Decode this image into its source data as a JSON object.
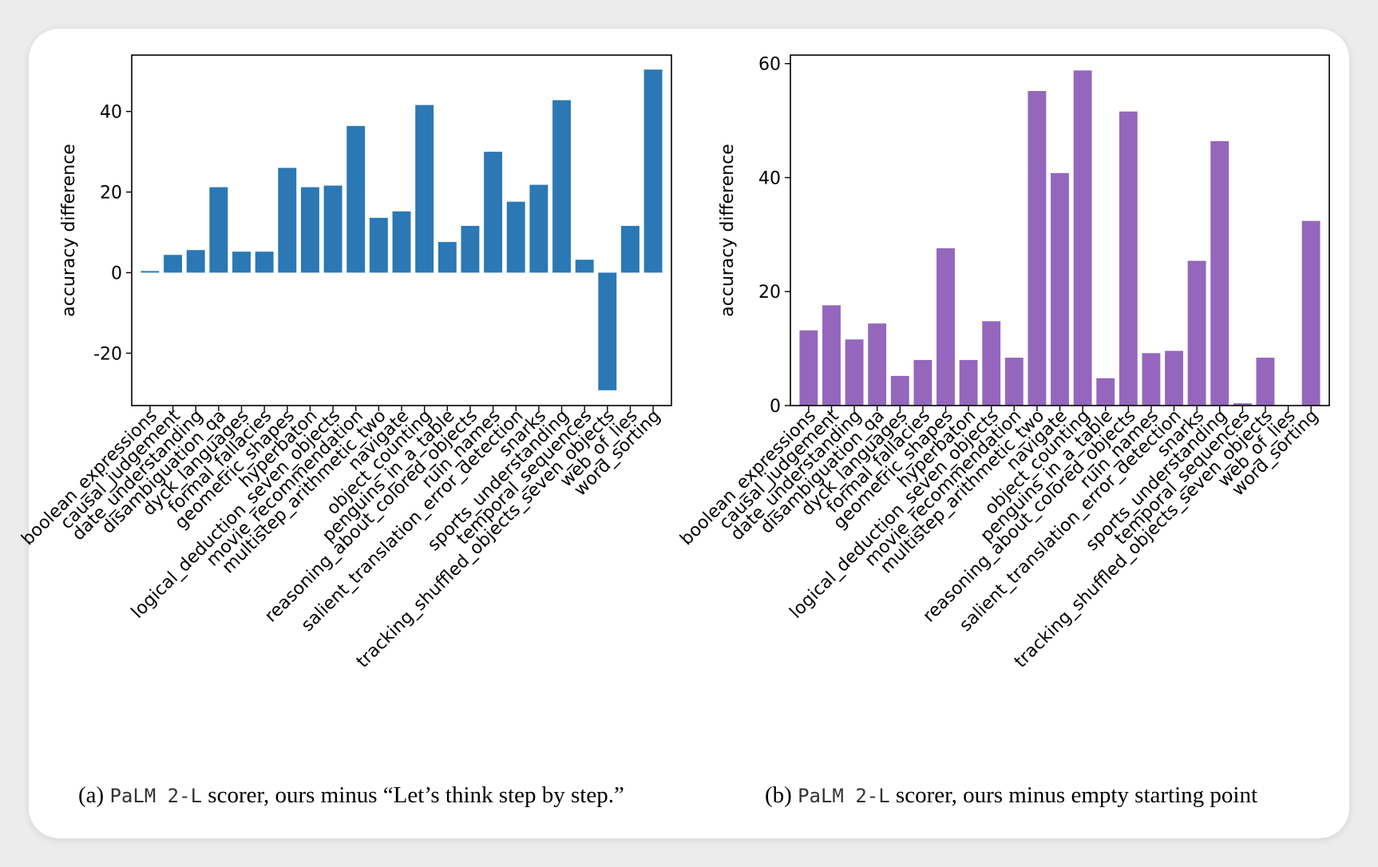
{
  "colors": {
    "panel_a": "#2b78b5",
    "panel_b": "#9467bd"
  },
  "chart_data": [
    {
      "type": "bar",
      "ylabel": "accuracy difference",
      "ylim": [
        -33,
        54
      ],
      "yticks": [
        -20,
        0,
        20,
        40
      ],
      "categories": [
        "boolean_expressions",
        "causal_judgement",
        "date_understanding",
        "disambiguation_qa",
        "dyck_languages",
        "formal_fallacies",
        "geometric_shapes",
        "hyperbaton",
        "logical_deduction_seven_objects",
        "movie_recommendation",
        "multistep_arithmetic_two",
        "navigate",
        "object_counting",
        "penguins_in_a_table",
        "reasoning_about_colored_objects",
        "ruin_names",
        "salient_translation_error_detection",
        "snarks",
        "sports_understanding",
        "temporal_sequences",
        "tracking_shuffled_objects_seven_objects",
        "web_of_lies",
        "word_sorting"
      ],
      "values": [
        0.4,
        4.4,
        5.6,
        21.2,
        5.2,
        5.2,
        26.0,
        21.2,
        21.6,
        36.4,
        13.6,
        15.2,
        41.6,
        7.6,
        11.6,
        30.0,
        17.6,
        21.8,
        42.8,
        3.2,
        -29.2,
        11.6,
        50.4
      ]
    },
    {
      "type": "bar",
      "ylabel": "accuracy difference",
      "ylim": [
        0,
        61.5
      ],
      "yticks": [
        0,
        20,
        40,
        60
      ],
      "categories": [
        "boolean_expressions",
        "causal_judgement",
        "date_understanding",
        "disambiguation_qa",
        "dyck_languages",
        "formal_fallacies",
        "geometric_shapes",
        "hyperbaton",
        "logical_deduction_seven_objects",
        "movie_recommendation",
        "multistep_arithmetic_two",
        "navigate",
        "object_counting",
        "penguins_in_a_table",
        "reasoning_about_colored_objects",
        "ruin_names",
        "salient_translation_error_detection",
        "snarks",
        "sports_understanding",
        "temporal_sequences",
        "tracking_shuffled_objects_seven_objects",
        "web_of_lies",
        "word_sorting"
      ],
      "values": [
        13.2,
        17.6,
        11.6,
        14.4,
        5.2,
        8.0,
        27.6,
        8.0,
        14.8,
        8.4,
        55.2,
        40.8,
        58.8,
        4.8,
        51.6,
        9.2,
        9.6,
        25.4,
        46.4,
        0.4,
        8.4,
        0.0,
        32.4
      ]
    }
  ],
  "captions": [
    {
      "label": "(a)",
      "model": "PaLM 2-L",
      "text": "scorer, ours minus “Let’s think step by step.”"
    },
    {
      "label": "(b)",
      "model": "PaLM 2-L",
      "text": "scorer, ours minus empty starting point"
    }
  ]
}
